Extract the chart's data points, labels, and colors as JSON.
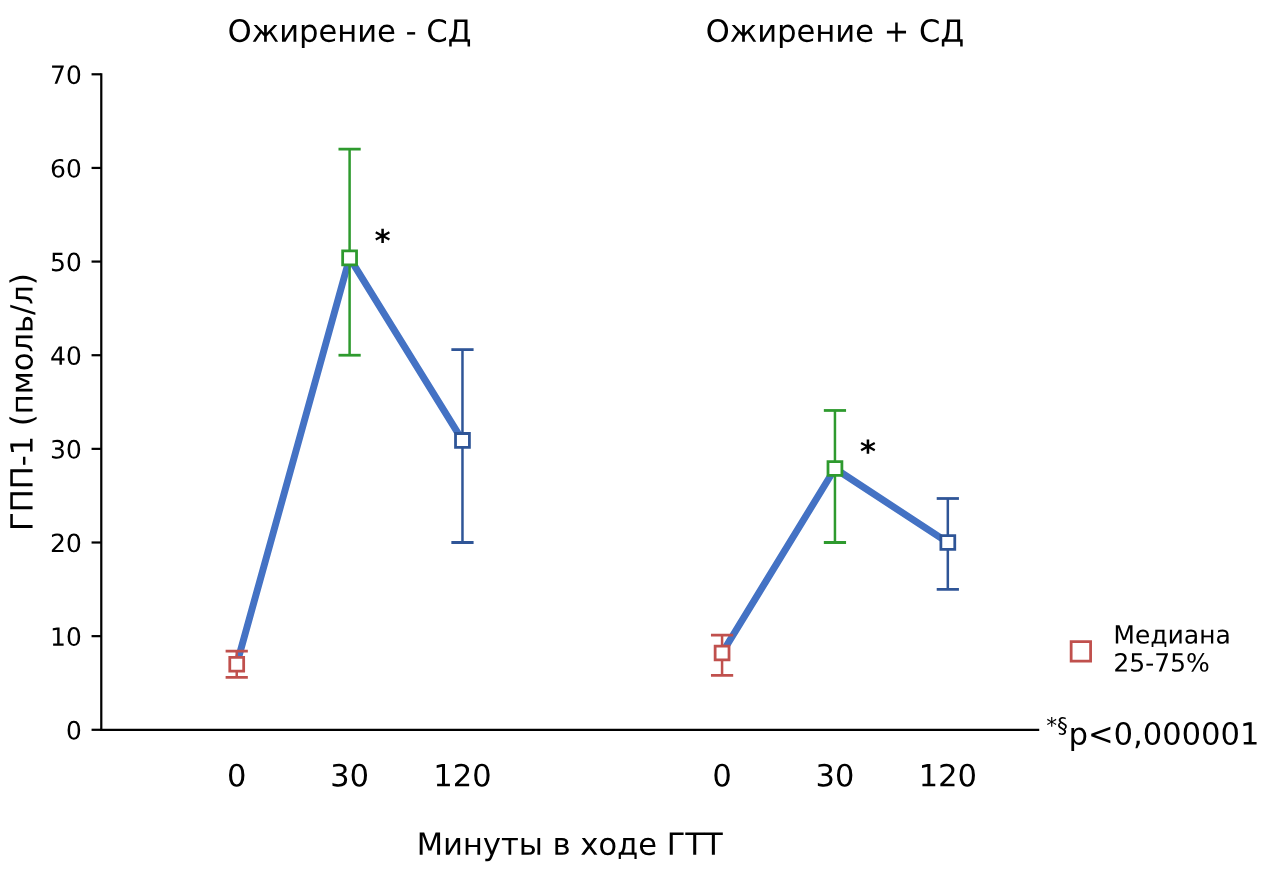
{
  "chart_data": {
    "type": "line",
    "xlabel": "Минуты в ходе ГТТ",
    "ylabel": "ГПП-1 (пмоль/л)",
    "categories": [
      "0",
      "30",
      "120",
      "0",
      "30",
      "120"
    ],
    "ylim": [
      0,
      70
    ],
    "yticks": [
      0,
      10,
      20,
      30,
      40,
      50,
      60,
      70
    ],
    "grid": false,
    "legend": "bottom right",
    "marker": "square",
    "line_style": "solid",
    "series": [
      {
        "name": "Медиана\n25-75%",
        "color": "#4472c4",
        "colors": [
          "#c0504d",
          "#2e9a2e",
          "#2f5597",
          null,
          null,
          null
        ],
        "values": [
          7,
          50.4,
          30.9,
          null,
          null,
          null
        ],
        "errors": [
          [
            5.6,
            8.4
          ],
          [
            40,
            62
          ],
          [
            20,
            40.6
          ],
          null,
          null,
          null
        ],
        "value_labels": [
          null,
          "*",
          null,
          null,
          null,
          null
        ]
      },
      {
        "color": "#4472c4",
        "colors": [
          null,
          null,
          null,
          "#c0504d",
          "#2e9a2e",
          "#2f5597"
        ],
        "values": [
          null,
          null,
          null,
          8.2,
          27.9,
          20
        ],
        "errors": [
          null,
          null,
          null,
          [
            5.8,
            10.1
          ],
          [
            20,
            34.1
          ],
          [
            15,
            24.7
          ]
        ],
        "value_labels": [
          null,
          null,
          null,
          null,
          "*",
          null
        ]
      }
    ],
    "annotations": [
      "Ожирение - СД",
      "Ожирение + СД",
      "$^{*§}$p<0,000001"
    ]
  }
}
